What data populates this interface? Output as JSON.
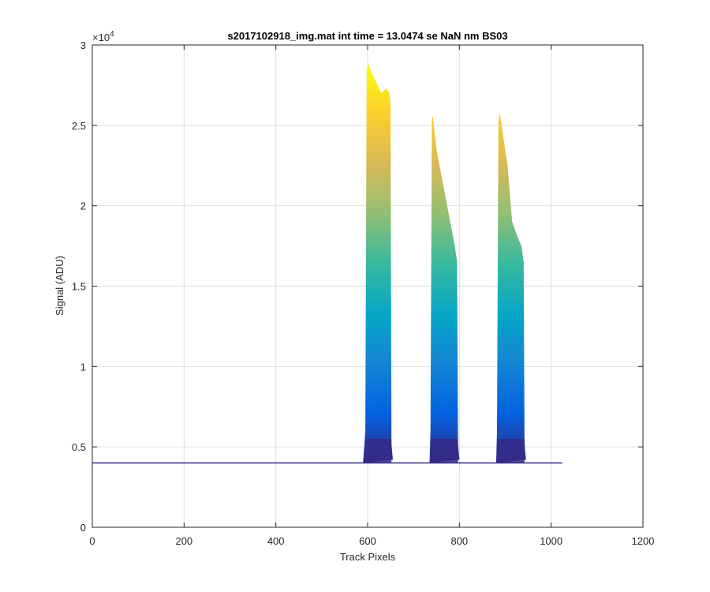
{
  "chart_data": {
    "type": "line",
    "title": "s2017102918_img.mat int time = 13.0474 se  NaN nm BS03",
    "xlabel": "Track Pixels",
    "ylabel": "Signal (ADU)",
    "xlim": [
      0,
      1200
    ],
    "ylim": [
      0,
      30000
    ],
    "x_ticks": [
      0,
      200,
      400,
      600,
      800,
      1000,
      1200
    ],
    "x_tick_labels": [
      "0",
      "200",
      "400",
      "600",
      "800",
      "1000",
      "1200"
    ],
    "y_ticks": [
      0,
      5000,
      10000,
      15000,
      20000,
      25000,
      30000
    ],
    "y_tick_labels": [
      "0",
      "0.5",
      "1",
      "1.5",
      "2",
      "2.5",
      "3"
    ],
    "y_exponent_base": "×10",
    "y_exponent_power": "4",
    "grid": true,
    "colormap": [
      "#352a87",
      "#0363e1",
      "#1485d4",
      "#06a7c6",
      "#38b99e",
      "#92bf73",
      "#d9ba56",
      "#fcce2e",
      "#f9fb0e"
    ],
    "baseline": 4000,
    "x_extent": [
      0,
      1024
    ],
    "peaks": [
      {
        "x_start": 590,
        "x_end": 655,
        "top_profile": [
          [
            598,
            28500
          ],
          [
            602,
            28800
          ],
          [
            610,
            28200
          ],
          [
            620,
            27600
          ],
          [
            630,
            27000
          ],
          [
            640,
            27300
          ],
          [
            648,
            27000
          ],
          [
            650,
            26500
          ]
        ]
      },
      {
        "x_start": 735,
        "x_end": 800,
        "top_profile": [
          [
            740,
            25300
          ],
          [
            742,
            25600
          ],
          [
            750,
            23500
          ],
          [
            760,
            22000
          ],
          [
            770,
            20500
          ],
          [
            780,
            19000
          ],
          [
            790,
            17500
          ],
          [
            795,
            16500
          ]
        ]
      },
      {
        "x_start": 880,
        "x_end": 945,
        "top_profile": [
          [
            885,
            25200
          ],
          [
            888,
            25800
          ],
          [
            896,
            24200
          ],
          [
            905,
            22500
          ],
          [
            915,
            19000
          ],
          [
            925,
            18200
          ],
          [
            935,
            17500
          ],
          [
            940,
            16500
          ]
        ]
      }
    ]
  }
}
